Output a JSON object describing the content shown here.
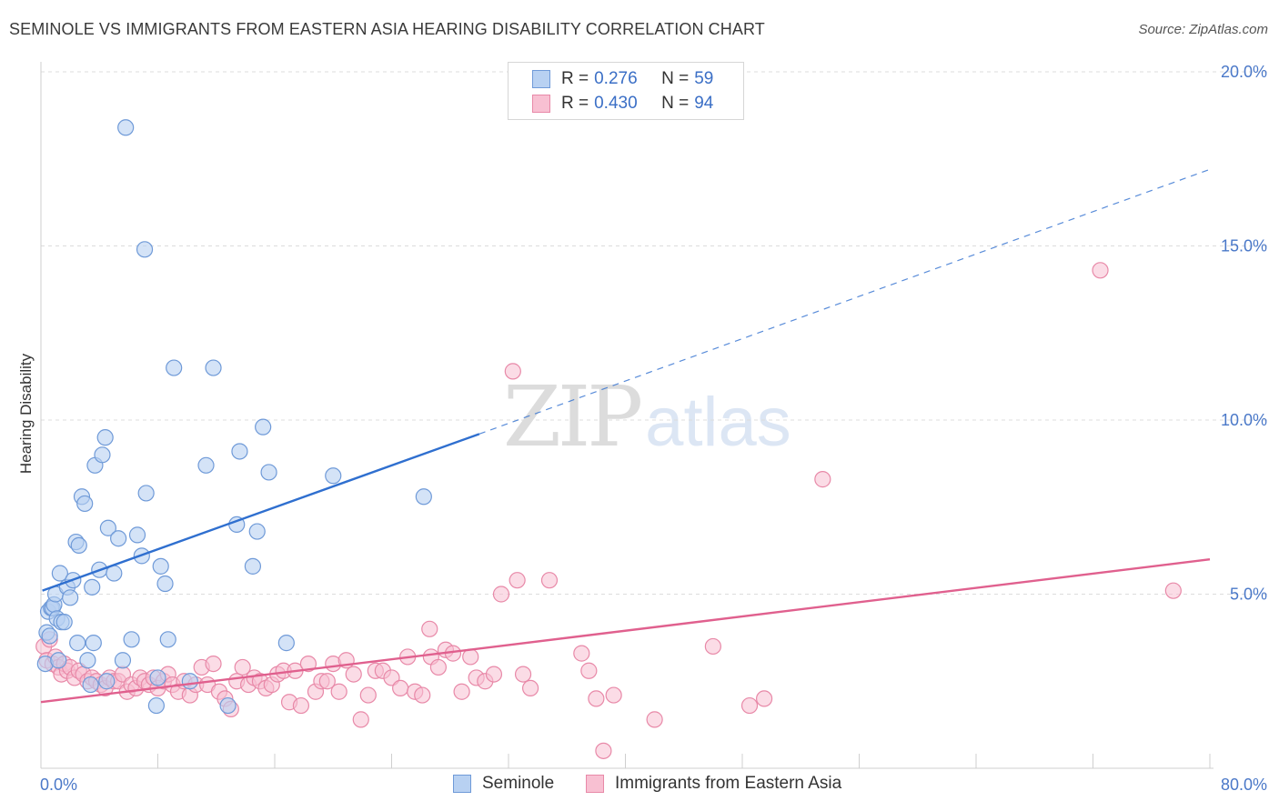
{
  "header": {
    "title": "SEMINOLE VS IMMIGRANTS FROM EASTERN ASIA HEARING DISABILITY CORRELATION CHART",
    "source": "Source: ZipAtlas.com"
  },
  "watermark": {
    "zip": "ZIP",
    "atlas": "atlas"
  },
  "legend_top": {
    "rows": [
      {
        "r_label": "R =",
        "r_value": "0.276",
        "n_label": "N =",
        "n_value": "59"
      },
      {
        "r_label": "R =",
        "r_value": "0.430",
        "n_label": "N =",
        "n_value": "94"
      }
    ]
  },
  "legend_bottom": {
    "items": [
      {
        "label": "Seminole"
      },
      {
        "label": "Immigrants from Eastern Asia"
      }
    ]
  },
  "colors": {
    "blue_fill": "#b8d1f2",
    "blue_stroke": "#6f9ad8",
    "blue_line": "#2f6fcf",
    "pink_fill": "#f8c0d2",
    "pink_stroke": "#e889a8",
    "pink_line": "#e0608e",
    "grid": "#dcdcdc"
  },
  "chart_data": {
    "type": "scatter",
    "ylabel": "Hearing Disability",
    "xlim": [
      0,
      80
    ],
    "ylim": [
      0,
      20
    ],
    "x_tick_labels": [
      "0.0%",
      "80.0%"
    ],
    "y_ticks": [
      5,
      10,
      15,
      20
    ],
    "y_tick_labels": [
      "5.0%",
      "10.0%",
      "15.0%",
      "20.0%"
    ],
    "grid": "horizontal dashed",
    "legend_position": "top-center",
    "series": [
      {
        "name": "Seminole",
        "r": 0.276,
        "n": 59,
        "trend": {
          "x": [
            0.1,
            30
          ],
          "y": [
            5.1,
            9.6
          ],
          "extended_to": {
            "x": 80,
            "y": 17.2
          }
        },
        "points": [
          [
            0.3,
            3.0
          ],
          [
            0.4,
            3.9
          ],
          [
            0.5,
            4.5
          ],
          [
            0.6,
            3.8
          ],
          [
            0.7,
            4.6
          ],
          [
            0.8,
            4.6
          ],
          [
            0.9,
            4.7
          ],
          [
            1.0,
            5.0
          ],
          [
            1.1,
            4.3
          ],
          [
            1.2,
            3.1
          ],
          [
            1.3,
            5.6
          ],
          [
            1.4,
            4.2
          ],
          [
            1.6,
            4.2
          ],
          [
            1.8,
            5.2
          ],
          [
            2.0,
            4.9
          ],
          [
            2.2,
            5.4
          ],
          [
            2.4,
            6.5
          ],
          [
            2.5,
            3.6
          ],
          [
            2.6,
            6.4
          ],
          [
            2.8,
            7.8
          ],
          [
            3.0,
            7.6
          ],
          [
            3.2,
            3.1
          ],
          [
            3.4,
            2.4
          ],
          [
            3.5,
            5.2
          ],
          [
            3.6,
            3.6
          ],
          [
            3.7,
            8.7
          ],
          [
            4.0,
            5.7
          ],
          [
            4.2,
            9.0
          ],
          [
            4.4,
            9.5
          ],
          [
            4.6,
            6.9
          ],
          [
            5.0,
            5.6
          ],
          [
            5.3,
            6.6
          ],
          [
            5.6,
            3.1
          ],
          [
            5.8,
            18.4
          ],
          [
            6.2,
            3.7
          ],
          [
            6.6,
            6.7
          ],
          [
            6.9,
            6.1
          ],
          [
            7.1,
            14.9
          ],
          [
            7.2,
            7.9
          ],
          [
            7.9,
            1.8
          ],
          [
            8.2,
            5.8
          ],
          [
            8.5,
            5.3
          ],
          [
            8.7,
            3.7
          ],
          [
            9.1,
            11.5
          ],
          [
            10.2,
            2.5
          ],
          [
            11.3,
            8.7
          ],
          [
            11.8,
            11.5
          ],
          [
            12.8,
            1.8
          ],
          [
            13.4,
            7.0
          ],
          [
            13.6,
            9.1
          ],
          [
            14.5,
            5.8
          ],
          [
            14.8,
            6.8
          ],
          [
            15.2,
            9.8
          ],
          [
            15.6,
            8.5
          ],
          [
            16.8,
            3.6
          ],
          [
            20.0,
            8.4
          ],
          [
            26.2,
            7.8
          ],
          [
            8.0,
            2.6
          ],
          [
            4.5,
            2.5
          ]
        ]
      },
      {
        "name": "Immigrants from Eastern Asia",
        "r": 0.43,
        "n": 94,
        "trend": {
          "x": [
            0,
            80
          ],
          "y": [
            1.9,
            6.0
          ]
        },
        "points": [
          [
            0.2,
            3.5
          ],
          [
            0.4,
            3.1
          ],
          [
            0.6,
            3.7
          ],
          [
            0.8,
            3.0
          ],
          [
            1.0,
            3.2
          ],
          [
            1.2,
            2.9
          ],
          [
            1.4,
            2.7
          ],
          [
            1.6,
            3.0
          ],
          [
            1.8,
            2.8
          ],
          [
            2.0,
            2.9
          ],
          [
            2.3,
            2.6
          ],
          [
            2.6,
            2.8
          ],
          [
            2.9,
            2.7
          ],
          [
            3.2,
            2.5
          ],
          [
            3.5,
            2.6
          ],
          [
            3.8,
            2.5
          ],
          [
            4.1,
            2.4
          ],
          [
            4.4,
            2.3
          ],
          [
            4.7,
            2.6
          ],
          [
            5.0,
            2.5
          ],
          [
            5.3,
            2.5
          ],
          [
            5.6,
            2.7
          ],
          [
            5.9,
            2.2
          ],
          [
            6.2,
            2.4
          ],
          [
            6.5,
            2.3
          ],
          [
            6.8,
            2.6
          ],
          [
            7.1,
            2.5
          ],
          [
            7.4,
            2.4
          ],
          [
            7.7,
            2.6
          ],
          [
            8.0,
            2.3
          ],
          [
            8.4,
            2.5
          ],
          [
            8.7,
            2.7
          ],
          [
            9.0,
            2.4
          ],
          [
            9.4,
            2.2
          ],
          [
            9.8,
            2.5
          ],
          [
            10.2,
            2.1
          ],
          [
            10.6,
            2.4
          ],
          [
            11.0,
            2.9
          ],
          [
            11.4,
            2.4
          ],
          [
            11.8,
            3.0
          ],
          [
            12.2,
            2.2
          ],
          [
            12.6,
            2.0
          ],
          [
            13.0,
            1.7
          ],
          [
            13.4,
            2.5
          ],
          [
            13.8,
            2.9
          ],
          [
            14.2,
            2.4
          ],
          [
            14.6,
            2.6
          ],
          [
            15.0,
            2.5
          ],
          [
            15.4,
            2.3
          ],
          [
            15.8,
            2.4
          ],
          [
            16.2,
            2.7
          ],
          [
            16.6,
            2.8
          ],
          [
            17.0,
            1.9
          ],
          [
            17.4,
            2.8
          ],
          [
            17.8,
            1.8
          ],
          [
            18.3,
            3.0
          ],
          [
            18.8,
            2.2
          ],
          [
            19.2,
            2.5
          ],
          [
            19.6,
            2.5
          ],
          [
            20.0,
            3.0
          ],
          [
            20.4,
            2.2
          ],
          [
            20.9,
            3.1
          ],
          [
            21.4,
            2.7
          ],
          [
            21.9,
            1.4
          ],
          [
            22.4,
            2.1
          ],
          [
            22.9,
            2.8
          ],
          [
            23.4,
            2.8
          ],
          [
            24.0,
            2.6
          ],
          [
            24.6,
            2.3
          ],
          [
            25.1,
            3.2
          ],
          [
            25.6,
            2.2
          ],
          [
            26.1,
            2.1
          ],
          [
            26.7,
            3.2
          ],
          [
            27.2,
            2.9
          ],
          [
            27.7,
            3.4
          ],
          [
            28.2,
            3.3
          ],
          [
            28.8,
            2.2
          ],
          [
            29.4,
            3.2
          ],
          [
            29.8,
            2.6
          ],
          [
            30.4,
            2.5
          ],
          [
            31.0,
            2.7
          ],
          [
            31.5,
            5.0
          ],
          [
            32.3,
            11.4
          ],
          [
            32.6,
            5.4
          ],
          [
            33.0,
            2.7
          ],
          [
            33.5,
            2.3
          ],
          [
            34.8,
            5.4
          ],
          [
            37.0,
            3.3
          ],
          [
            37.5,
            2.8
          ],
          [
            38.5,
            0.5
          ],
          [
            39.2,
            2.1
          ],
          [
            42.0,
            1.4
          ],
          [
            46.0,
            3.5
          ],
          [
            72.5,
            14.3
          ]
        ]
      }
    ],
    "extra_points_immigrants": [
      [
        38.0,
        2.0
      ],
      [
        48.5,
        1.8
      ],
      [
        49.5,
        2.0
      ],
      [
        53.5,
        8.3
      ],
      [
        77.5,
        5.1
      ],
      [
        26.6,
        4.0
      ]
    ]
  }
}
